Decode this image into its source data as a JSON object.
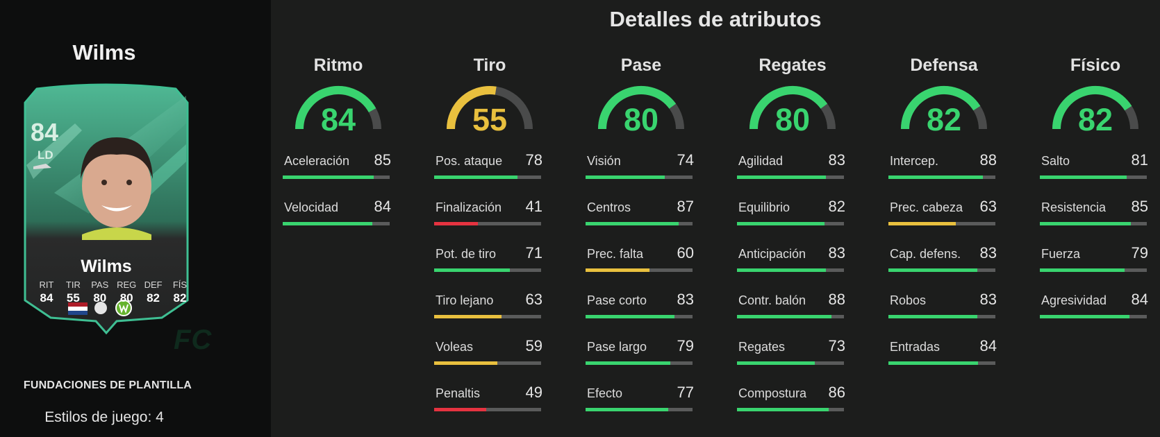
{
  "title": "Detalles de atributos",
  "player": {
    "name": "Wilms",
    "rating": "84",
    "position": "LD",
    "card_labels": [
      "RIT",
      "TIR",
      "PAS",
      "REG",
      "DEF",
      "FÍS"
    ],
    "card_values": [
      "84",
      "55",
      "80",
      "80",
      "82",
      "82"
    ],
    "footer_title": "FUNDACIONES DE PLANTILLA",
    "playstyles": "Estilos de juego: 4"
  },
  "colors": {
    "green": "#39d46f",
    "yellow": "#e9c03e",
    "red": "#e53340",
    "track": "#5a5b5b",
    "gauge_track": "#4a4b4b"
  },
  "categories": [
    {
      "name": "Ritmo",
      "value": 84,
      "stats": [
        {
          "name": "Aceleración",
          "value": 85
        },
        {
          "name": "Velocidad",
          "value": 84
        }
      ]
    },
    {
      "name": "Tiro",
      "value": 55,
      "stats": [
        {
          "name": "Pos. ataque",
          "value": 78
        },
        {
          "name": "Finalización",
          "value": 41
        },
        {
          "name": "Pot. de tiro",
          "value": 71
        },
        {
          "name": "Tiro lejano",
          "value": 63
        },
        {
          "name": "Voleas",
          "value": 59
        },
        {
          "name": "Penaltis",
          "value": 49
        }
      ]
    },
    {
      "name": "Pase",
      "value": 80,
      "stats": [
        {
          "name": "Visión",
          "value": 74
        },
        {
          "name": "Centros",
          "value": 87
        },
        {
          "name": "Prec. falta",
          "value": 60
        },
        {
          "name": "Pase corto",
          "value": 83
        },
        {
          "name": "Pase largo",
          "value": 79
        },
        {
          "name": "Efecto",
          "value": 77
        }
      ]
    },
    {
      "name": "Regates",
      "value": 80,
      "stats": [
        {
          "name": "Agilidad",
          "value": 83
        },
        {
          "name": "Equilibrio",
          "value": 82
        },
        {
          "name": "Anticipación",
          "value": 83
        },
        {
          "name": "Contr. balón",
          "value": 88
        },
        {
          "name": "Regates",
          "value": 73
        },
        {
          "name": "Compostura",
          "value": 86
        }
      ]
    },
    {
      "name": "Defensa",
      "value": 82,
      "stats": [
        {
          "name": "Intercep.",
          "value": 88
        },
        {
          "name": "Prec. cabeza",
          "value": 63
        },
        {
          "name": "Cap. defens.",
          "value": 83
        },
        {
          "name": "Robos",
          "value": 83
        },
        {
          "name": "Entradas",
          "value": 84
        }
      ]
    },
    {
      "name": "Físico",
      "value": 82,
      "stats": [
        {
          "name": "Salto",
          "value": 81
        },
        {
          "name": "Resistencia",
          "value": 85
        },
        {
          "name": "Fuerza",
          "value": 79
        },
        {
          "name": "Agresividad",
          "value": 84
        }
      ]
    }
  ]
}
